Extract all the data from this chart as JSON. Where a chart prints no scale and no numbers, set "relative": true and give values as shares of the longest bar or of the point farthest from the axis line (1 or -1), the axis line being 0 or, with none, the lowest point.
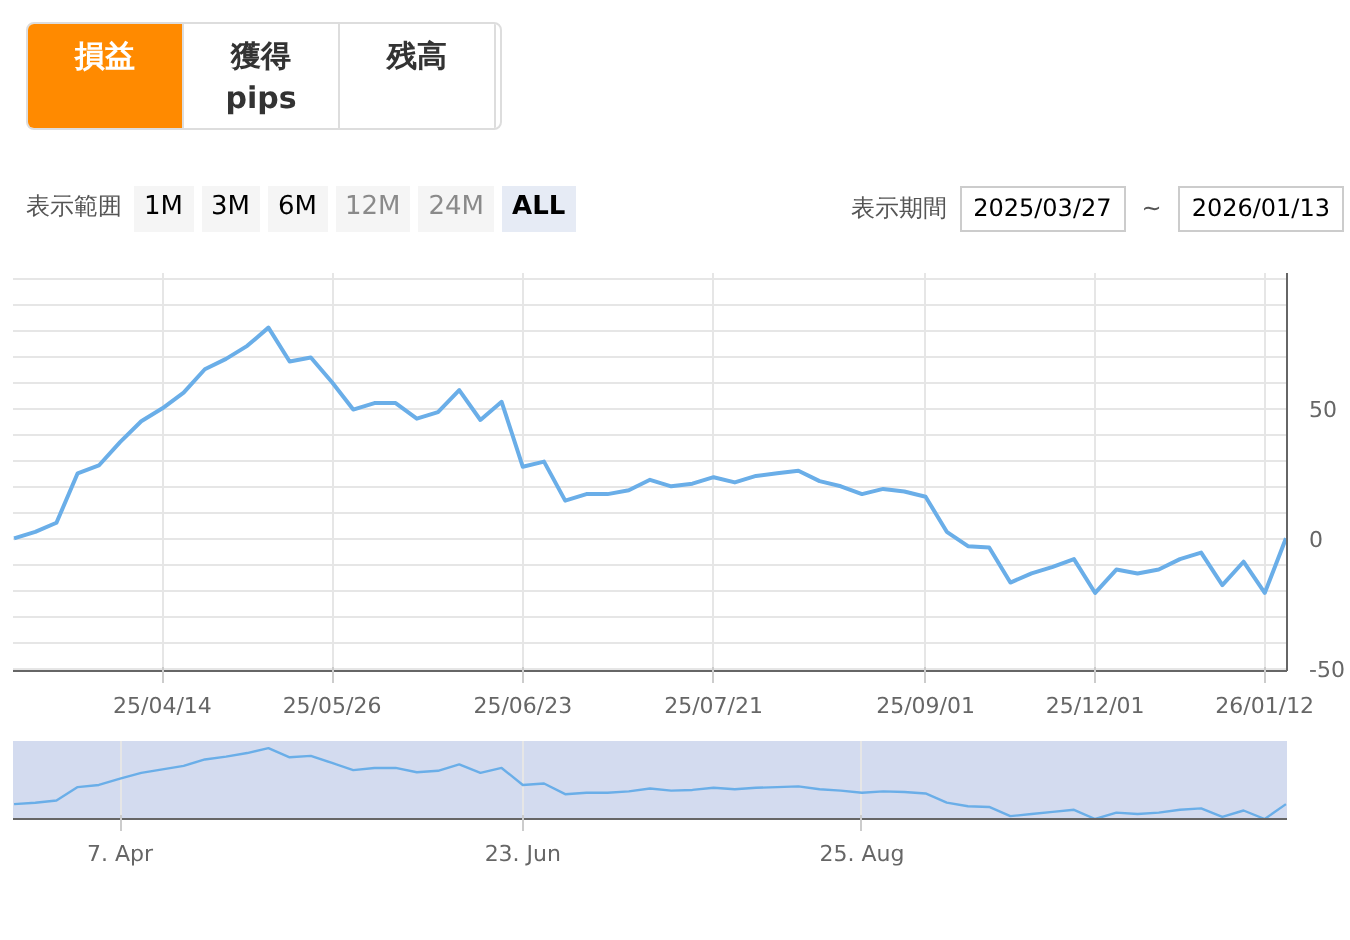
{
  "chart_data": [
    {
      "type": "line",
      "annotations": [
        "損益",
        "獲得pips",
        "残高",
        "表示範囲",
        "1M",
        "3M",
        "6M",
        "12M",
        "24M",
        "ALL",
        "表示期間",
        "2025/03/27",
        "~",
        "2026/01/13"
      ],
      "categories": [
        null,
        null,
        null,
        null,
        null,
        null,
        null,
        "25/04/14",
        null,
        null,
        null,
        null,
        null,
        null,
        null,
        "25/05/26",
        null,
        null,
        null,
        null,
        null,
        null,
        null,
        null,
        "25/06/23",
        null,
        null,
        null,
        null,
        null,
        null,
        null,
        null,
        "25/07/21",
        null,
        null,
        null,
        null,
        null,
        null,
        null,
        null,
        null,
        "25/09/01",
        null,
        null,
        null,
        null,
        null,
        null,
        null,
        "25/12/01",
        null,
        null,
        null,
        null,
        null,
        null,
        null,
        "26/01/12",
        null
      ],
      "series": [
        {
          "color": "#6aaee8",
          "values": [
            0,
            2.5,
            6,
            25,
            28,
            37,
            45,
            50,
            56,
            65,
            69,
            74,
            81,
            68,
            69.5,
            60,
            49.5,
            52,
            52,
            46,
            48.5,
            57,
            45.5,
            52.5,
            27.5,
            29.5,
            14.5,
            17,
            17,
            18.5,
            22.5,
            20,
            21,
            23.5,
            21.5,
            24,
            25,
            26,
            22,
            20,
            17,
            19,
            18,
            16,
            2.5,
            -3,
            -3.5,
            -17,
            -13.5,
            -11,
            -8,
            -21,
            -12,
            -13.5,
            -12,
            -8,
            -5.5,
            -18,
            -9,
            -21,
            0
          ]
        }
      ],
      "ylim": [
        -51,
        102
      ],
      "yticks": [
        {
          "value": -50,
          "label": "-50"
        },
        {
          "value": -40,
          "label": null
        },
        {
          "value": -30,
          "label": null
        },
        {
          "value": -20,
          "label": null
        },
        {
          "value": -10,
          "label": null
        },
        0,
        {
          "value": 10,
          "label": null
        },
        {
          "value": 20,
          "label": null
        },
        {
          "value": 30,
          "label": null
        },
        {
          "value": 40,
          "label": null
        },
        50,
        {
          "value": 60,
          "label": null
        },
        {
          "value": 70,
          "label": null
        },
        {
          "value": 80,
          "label": null
        },
        {
          "value": 90,
          "label": null
        },
        {
          "value": 100,
          "label": null
        }
      ],
      "grid": true
    },
    {
      "type": "line",
      "categories": [
        null,
        null,
        null,
        null,
        null,
        "7. Apr",
        null,
        null,
        null,
        null,
        null,
        null,
        null,
        null,
        null,
        null,
        null,
        null,
        null,
        null,
        null,
        null,
        null,
        null,
        "23. Jun",
        null,
        null,
        null,
        null,
        null,
        null,
        null,
        null,
        null,
        null,
        null,
        null,
        null,
        null,
        null,
        "25. Aug",
        null,
        null,
        null,
        null,
        null,
        null,
        null,
        null,
        null,
        null,
        null,
        null,
        null,
        null,
        null,
        null,
        null,
        null,
        null,
        null
      ],
      "series": [
        {
          "color": "#6aaee8",
          "values": [
            0.21,
            0.23,
            0.26,
            0.45,
            0.48,
            0.57,
            0.65,
            0.7,
            0.75,
            0.84,
            0.88,
            0.93,
            1,
            0.87,
            0.89,
            0.79,
            0.69,
            0.72,
            0.72,
            0.66,
            0.68,
            0.77,
            0.65,
            0.72,
            0.48,
            0.5,
            0.35,
            0.37,
            0.37,
            0.39,
            0.43,
            0.4,
            0.41,
            0.44,
            0.42,
            0.44,
            0.45,
            0.46,
            0.42,
            0.4,
            0.37,
            0.39,
            0.38,
            0.36,
            0.23,
            0.18,
            0.17,
            0.04,
            0.07,
            0.1,
            0.13,
            0,
            0.09,
            0.07,
            0.09,
            0.13,
            0.15,
            0.03,
            0.12,
            0,
            0.21
          ]
        }
      ],
      "relative": true,
      "tick_labels": "x",
      "grid": "x"
    }
  ]
}
